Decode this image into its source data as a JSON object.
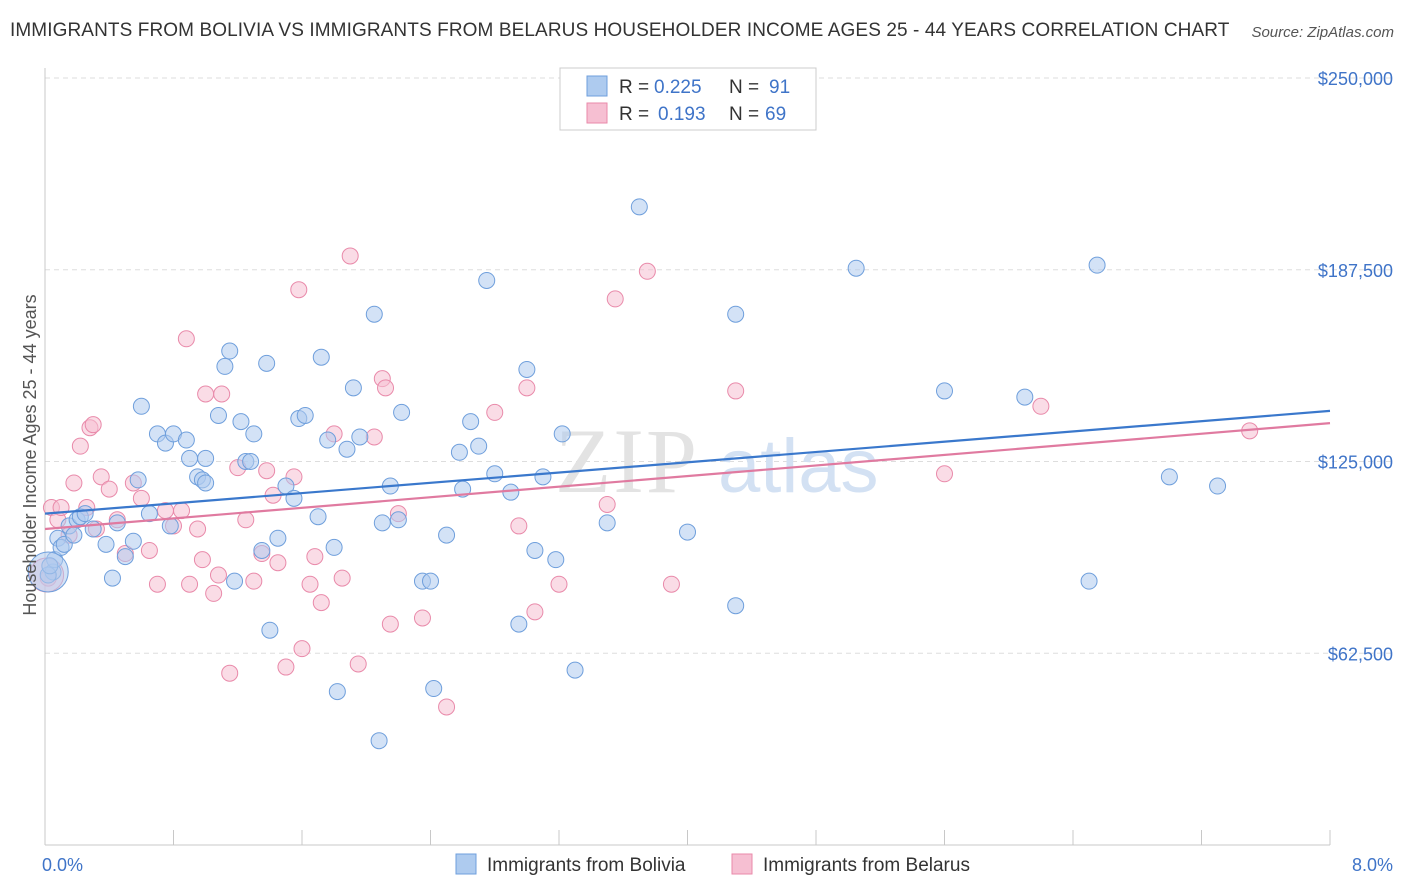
{
  "title": "IMMIGRANTS FROM BOLIVIA VS IMMIGRANTS FROM BELARUS HOUSEHOLDER INCOME AGES 25 - 44 YEARS CORRELATION CHART",
  "source": "Source: ZipAtlas.com",
  "watermark": {
    "zip": "ZIP",
    "atlas": "atlas"
  },
  "legend": {
    "r_label": "R =",
    "n_label": "N =",
    "items": [
      {
        "r": "0.225",
        "n": "91"
      },
      {
        "r": "0.193",
        "n": "69"
      }
    ]
  },
  "bottom_legend": [
    "Immigrants from Bolivia",
    "Immigrants from Belarus"
  ],
  "colors": {
    "blue_fill": "#aecbef",
    "blue_stroke": "#6f9fdc",
    "blue_line": "#3a78cc",
    "pink_fill": "#f6bfd2",
    "pink_stroke": "#e98aaa",
    "pink_line": "#e07aa0",
    "tick_text": "#3f74c8",
    "grid": "#dddddd"
  },
  "chart_data": {
    "type": "scatter",
    "title": "IMMIGRANTS FROM BOLIVIA VS IMMIGRANTS FROM BELARUS HOUSEHOLDER INCOME AGES 25 - 44 YEARS CORRELATION CHART",
    "xlabel": "",
    "ylabel": "Householder Income Ages 25 - 44 years",
    "xlim": [
      0,
      8
    ],
    "ylim": [
      0,
      262500
    ],
    "x_tick_labels": [
      "0.0%",
      "8.0%"
    ],
    "y_ticks": [
      62500,
      125000,
      187500,
      250000
    ],
    "y_tick_labels": [
      "$62,500",
      "$125,000",
      "$187,500",
      "$250,000"
    ],
    "grid": "horizontal dashed",
    "legend_position": "top-center",
    "series": [
      {
        "name": "Immigrants from Bolivia",
        "r": 0.225,
        "n": 91,
        "trend": {
          "x0": 0,
          "y0": 108000,
          "x1": 8,
          "y1": 141500
        },
        "points": [
          [
            0.05,
            89000
          ],
          [
            0.06,
            93000
          ],
          [
            0.08,
            100000
          ],
          [
            0.1,
            97000
          ],
          [
            0.12,
            98000
          ],
          [
            0.15,
            104000
          ],
          [
            0.18,
            101000
          ],
          [
            0.2,
            106000
          ],
          [
            0.22,
            107000
          ],
          [
            0.25,
            108000
          ],
          [
            0.3,
            103000
          ],
          [
            0.38,
            98000
          ],
          [
            0.42,
            87000
          ],
          [
            0.45,
            105000
          ],
          [
            0.5,
            94000
          ],
          [
            0.55,
            99000
          ],
          [
            0.58,
            119000
          ],
          [
            0.6,
            143000
          ],
          [
            0.65,
            108000
          ],
          [
            0.7,
            134000
          ],
          [
            0.75,
            131000
          ],
          [
            0.78,
            104000
          ],
          [
            0.8,
            134000
          ],
          [
            0.88,
            132000
          ],
          [
            0.9,
            126000
          ],
          [
            0.95,
            120000
          ],
          [
            0.98,
            119000
          ],
          [
            1.0,
            118000
          ],
          [
            1.08,
            140000
          ],
          [
            1.12,
            156000
          ],
          [
            1.15,
            161000
          ],
          [
            1.18,
            86000
          ],
          [
            1.22,
            138000
          ],
          [
            1.25,
            125000
          ],
          [
            1.28,
            125000
          ],
          [
            1.3,
            134000
          ],
          [
            1.35,
            96000
          ],
          [
            1.38,
            157000
          ],
          [
            1.4,
            70000
          ],
          [
            1.45,
            100000
          ],
          [
            1.5,
            117000
          ],
          [
            1.55,
            113000
          ],
          [
            1.58,
            139000
          ],
          [
            1.62,
            140000
          ],
          [
            1.7,
            107000
          ],
          [
            1.72,
            159000
          ],
          [
            1.76,
            132000
          ],
          [
            1.8,
            97000
          ],
          [
            1.82,
            50000
          ],
          [
            1.88,
            129000
          ],
          [
            1.92,
            149000
          ],
          [
            1.96,
            133000
          ],
          [
            2.05,
            173000
          ],
          [
            2.08,
            34000
          ],
          [
            2.1,
            105000
          ],
          [
            2.15,
            117000
          ],
          [
            2.2,
            106000
          ],
          [
            2.22,
            141000
          ],
          [
            2.35,
            86000
          ],
          [
            2.4,
            86000
          ],
          [
            2.42,
            51000
          ],
          [
            2.5,
            101000
          ],
          [
            2.58,
            128000
          ],
          [
            2.6,
            116000
          ],
          [
            2.65,
            138000
          ],
          [
            2.7,
            130000
          ],
          [
            2.75,
            184000
          ],
          [
            2.8,
            121000
          ],
          [
            2.9,
            115000
          ],
          [
            2.95,
            72000
          ],
          [
            3.0,
            155000
          ],
          [
            3.05,
            96000
          ],
          [
            3.1,
            120000
          ],
          [
            3.18,
            93000
          ],
          [
            3.22,
            134000
          ],
          [
            3.3,
            57000
          ],
          [
            3.5,
            105000
          ],
          [
            3.7,
            208000
          ],
          [
            4.0,
            102000
          ],
          [
            4.3,
            173000
          ],
          [
            4.3,
            78000
          ],
          [
            5.05,
            188000
          ],
          [
            5.6,
            148000
          ],
          [
            6.1,
            146000
          ],
          [
            6.5,
            86000
          ],
          [
            6.55,
            189000
          ],
          [
            7.0,
            120000
          ],
          [
            7.3,
            117000
          ],
          [
            0.02,
            88000
          ],
          [
            0.03,
            91000
          ],
          [
            1.0,
            126000
          ]
        ]
      },
      {
        "name": "Immigrants from Belarus",
        "r": 0.193,
        "n": 69,
        "trend": {
          "x0": 0,
          "y0": 103000,
          "x1": 8,
          "y1": 137500
        },
        "points": [
          [
            0.02,
            87000
          ],
          [
            0.04,
            110000
          ],
          [
            0.08,
            106000
          ],
          [
            0.1,
            110000
          ],
          [
            0.15,
            101000
          ],
          [
            0.18,
            118000
          ],
          [
            0.22,
            130000
          ],
          [
            0.26,
            110000
          ],
          [
            0.28,
            136000
          ],
          [
            0.3,
            137000
          ],
          [
            0.32,
            103000
          ],
          [
            0.35,
            120000
          ],
          [
            0.4,
            116000
          ],
          [
            0.45,
            106000
          ],
          [
            0.5,
            95000
          ],
          [
            0.55,
            118000
          ],
          [
            0.6,
            113000
          ],
          [
            0.65,
            96000
          ],
          [
            0.7,
            85000
          ],
          [
            0.75,
            109000
          ],
          [
            0.8,
            104000
          ],
          [
            0.85,
            109000
          ],
          [
            0.88,
            165000
          ],
          [
            0.9,
            85000
          ],
          [
            0.95,
            103000
          ],
          [
            0.98,
            93000
          ],
          [
            1.0,
            147000
          ],
          [
            1.05,
            82000
          ],
          [
            1.08,
            88000
          ],
          [
            1.1,
            147000
          ],
          [
            1.15,
            56000
          ],
          [
            1.2,
            123000
          ],
          [
            1.25,
            106000
          ],
          [
            1.3,
            86000
          ],
          [
            1.35,
            95000
          ],
          [
            1.38,
            122000
          ],
          [
            1.42,
            114000
          ],
          [
            1.45,
            92000
          ],
          [
            1.5,
            58000
          ],
          [
            1.55,
            120000
          ],
          [
            1.58,
            181000
          ],
          [
            1.6,
            64000
          ],
          [
            1.65,
            85000
          ],
          [
            1.68,
            94000
          ],
          [
            1.72,
            79000
          ],
          [
            1.8,
            134000
          ],
          [
            1.85,
            87000
          ],
          [
            1.9,
            192000
          ],
          [
            1.95,
            59000
          ],
          [
            2.05,
            133000
          ],
          [
            2.1,
            152000
          ],
          [
            2.12,
            149000
          ],
          [
            2.15,
            72000
          ],
          [
            2.2,
            108000
          ],
          [
            2.35,
            74000
          ],
          [
            2.5,
            45000
          ],
          [
            2.8,
            141000
          ],
          [
            2.95,
            104000
          ],
          [
            3.0,
            149000
          ],
          [
            3.05,
            76000
          ],
          [
            3.2,
            85000
          ],
          [
            3.5,
            111000
          ],
          [
            3.55,
            178000
          ],
          [
            3.75,
            187000
          ],
          [
            3.9,
            85000
          ],
          [
            4.3,
            148000
          ],
          [
            5.6,
            121000
          ],
          [
            6.2,
            143000
          ],
          [
            7.5,
            135000
          ]
        ]
      }
    ]
  }
}
